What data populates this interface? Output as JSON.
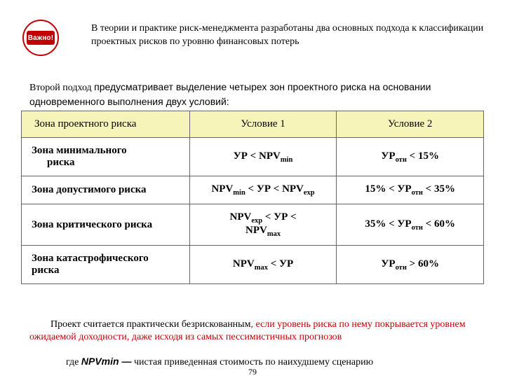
{
  "badge": {
    "text": "Важно!"
  },
  "intro1": "В теории и практике риск-менеджмента разработаны два основных подхода к классификации  проектных рисков по уровню финансовых потерь",
  "intro2": {
    "lead": "Второй подход ",
    "rest": "предусматривает выделение четырех зон проектного риска на основании одновременного выполнения двух условий:"
  },
  "table": {
    "headers": {
      "zone": "Зона проектного риска",
      "c1": "Условие 1",
      "c2": "Условие 2"
    },
    "rows": [
      {
        "zone_l1": "Зона минимального",
        "zone_l2": "риска",
        "c1_a": "УР < NPV",
        "c1_sub": "min",
        "c1_b": "",
        "c2_a": "УР",
        "c2_sub": "отн",
        "c2_b": " < 15%"
      },
      {
        "zone_l1": "Зона допустимого риска",
        "zone_l2": "",
        "c1_a": "NPV",
        "c1_sub": "min",
        "c1_b": " < УР < NPV",
        "c1_sub2": "exp",
        "c2_a": "15% < УР",
        "c2_sub": "отн",
        "c2_b": " < 35%"
      },
      {
        "zone_l1": "Зона критического риска",
        "zone_l2": "",
        "c1_a": "NPV",
        "c1_sub": "exp",
        "c1_b": " < УР < ",
        "c1_br": true,
        "c1_c": "NPV",
        "c1_sub2": "max",
        "c2_a": "35% < УР",
        "c2_sub": "отн",
        "c2_b": " < 60%"
      },
      {
        "zone_l1": "Зона катастрофического",
        "zone_l2_noindent": "риска",
        "c1_a": "NPV",
        "c1_sub": "max",
        "c1_b": " < УР",
        "c2_a": "УР",
        "c2_sub": "отн",
        "c2_b": " > 60%"
      }
    ]
  },
  "footer1": {
    "a": "Проект считается практически безрискованным",
    "b": ", если уровень риска по нему покрывается уровнем ожидаемой доходности, даже исходя из самых пессимистичных прогнозов"
  },
  "footer2": {
    "a": "где ",
    "b": "NPVmin —",
    "c": " чистая приведенная стоимость по наихудшему сценарию"
  },
  "page": "79"
}
